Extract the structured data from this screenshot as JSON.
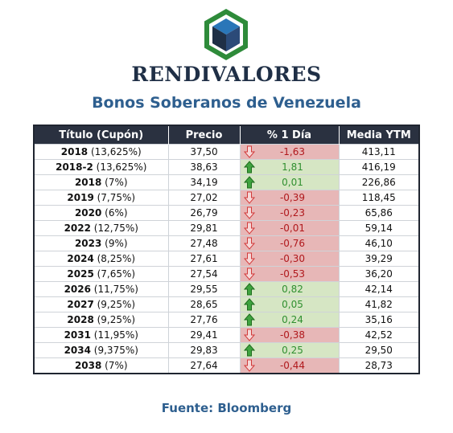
{
  "header": {
    "brand": "RENDIVALORES",
    "subtitle": "Bonos Soberanos de Venezuela",
    "logo_icon": "hexagon-cube-logo-icon"
  },
  "table": {
    "columns": [
      "Título (Cupón)",
      "Precio",
      "% 1 Día",
      "Media YTM"
    ],
    "rows": [
      {
        "title": "2018 (13,625%)",
        "price": "37,50",
        "change": "-1,63",
        "direction": "down",
        "ytm": "413,11"
      },
      {
        "title": "2018-2 (13,625%)",
        "price": "38,63",
        "change": "1,81",
        "direction": "up",
        "ytm": "416,19"
      },
      {
        "title": "2018 (7%)",
        "price": "34,19",
        "change": "0,01",
        "direction": "up",
        "ytm": "226,86"
      },
      {
        "title": "2019 (7,75%)",
        "price": "27,02",
        "change": "-0,39",
        "direction": "down",
        "ytm": "118,45"
      },
      {
        "title": "2020 (6%)",
        "price": "26,79",
        "change": "-0,23",
        "direction": "down",
        "ytm": "65,86"
      },
      {
        "title": "2022 (12,75%)",
        "price": "29,81",
        "change": "-0,01",
        "direction": "down",
        "ytm": "59,14"
      },
      {
        "title": "2023 (9%)",
        "price": "27,48",
        "change": "-0,76",
        "direction": "down",
        "ytm": "46,10"
      },
      {
        "title": "2024 (8,25%)",
        "price": "27,61",
        "change": "-0,30",
        "direction": "down",
        "ytm": "39,29"
      },
      {
        "title": "2025 (7,65%)",
        "price": "27,54",
        "change": "-0,53",
        "direction": "down",
        "ytm": "36,20"
      },
      {
        "title": "2026 (11,75%)",
        "price": "29,55",
        "change": "0,82",
        "direction": "up",
        "ytm": "42,14"
      },
      {
        "title": "2027 (9,25%)",
        "price": "28,65",
        "change": "0,05",
        "direction": "up",
        "ytm": "41,82"
      },
      {
        "title": "2028 (9,25%)",
        "price": "27,76",
        "change": "0,24",
        "direction": "up",
        "ytm": "35,16"
      },
      {
        "title": "2031 (11,95%)",
        "price": "29,41",
        "change": "-0,38",
        "direction": "down",
        "ytm": "42,52"
      },
      {
        "title": "2034 (9,375%)",
        "price": "29,83",
        "change": "0,25",
        "direction": "up",
        "ytm": "29,50"
      },
      {
        "title": "2038 (7%)",
        "price": "27,64",
        "change": "-0,44",
        "direction": "down",
        "ytm": "28,73"
      }
    ]
  },
  "footer": {
    "source": "Fuente: Bloomberg"
  },
  "colors": {
    "up_bg": "#d6e6c4",
    "up_text": "#2f8f2f",
    "down_bg": "#e7b7b7",
    "down_text": "#b0181c",
    "header_bg": "#2a3140",
    "accent_blue": "#2e5f8f"
  }
}
